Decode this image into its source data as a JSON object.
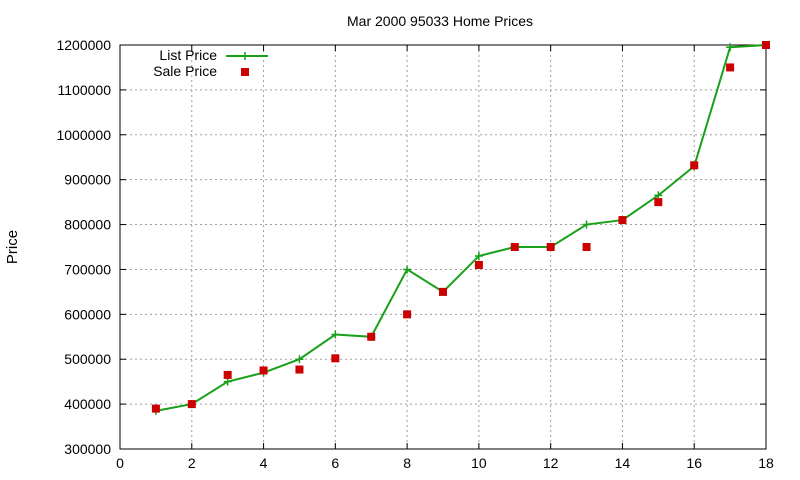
{
  "chart_data": {
    "type": "line",
    "title": "Mar 2000 95033 Home Prices",
    "xlabel": "",
    "ylabel": "Price",
    "xlim": [
      0,
      18
    ],
    "ylim": [
      300000,
      1200000
    ],
    "xticks": [
      0,
      2,
      4,
      6,
      8,
      10,
      12,
      14,
      16,
      18
    ],
    "yticks": [
      300000,
      400000,
      500000,
      600000,
      700000,
      800000,
      900000,
      1000000,
      1100000,
      1200000
    ],
    "grid": true,
    "legend_position": "top-left",
    "series": [
      {
        "name": "List Price",
        "style": "line+cross",
        "color": "#1aa01a",
        "x": [
          1,
          2,
          3,
          4,
          5,
          6,
          7,
          8,
          9,
          10,
          11,
          12,
          13,
          14,
          15,
          16,
          17,
          18
        ],
        "y": [
          385000,
          400000,
          450000,
          470000,
          500000,
          555000,
          550000,
          700000,
          650000,
          730000,
          750000,
          750000,
          800000,
          810000,
          865000,
          930000,
          1195000,
          1200000
        ]
      },
      {
        "name": "Sale Price",
        "style": "square",
        "color": "#cc0000",
        "x": [
          1,
          2,
          3,
          4,
          5,
          6,
          7,
          8,
          9,
          10,
          11,
          12,
          13,
          14,
          15,
          16,
          17,
          18
        ],
        "y": [
          390000,
          400000,
          465000,
          475000,
          477000,
          502000,
          550000,
          600000,
          650000,
          710000,
          750000,
          750000,
          750000,
          810000,
          850000,
          932000,
          1150000,
          1200000
        ]
      }
    ]
  }
}
